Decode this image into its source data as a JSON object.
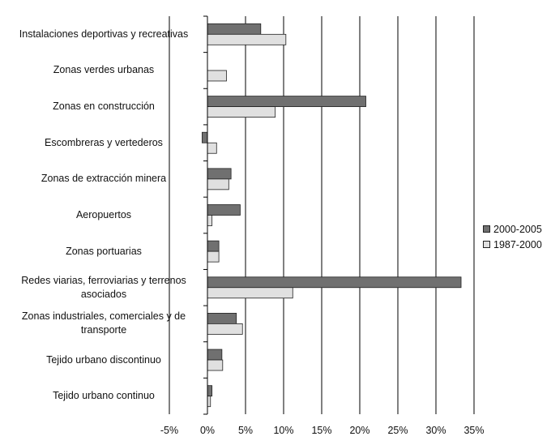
{
  "chart_data": {
    "type": "bar",
    "orientation": "horizontal",
    "categories": [
      "Instalaciones deportivas y recreativas",
      "Zonas verdes urbanas",
      "Zonas en construcción",
      "Escombreras y vertederos",
      "Zonas de extracción minera",
      "Aeropuertos",
      "Zonas portuarias",
      "Redes viarias, ferroviarias y terrenos asociados",
      "Zonas industriales, comerciales y de transporte",
      "Tejido urbano discontinuo",
      "Tejido urbano continuo"
    ],
    "series": [
      {
        "name": "2000-2005",
        "color": "#707070",
        "values": [
          7.0,
          0.0,
          20.8,
          -0.7,
          3.1,
          4.3,
          1.5,
          33.3,
          3.8,
          1.9,
          0.6
        ]
      },
      {
        "name": "1987-2000",
        "color": "#e0e0e0",
        "values": [
          10.3,
          2.5,
          8.9,
          1.2,
          2.8,
          0.6,
          1.5,
          11.2,
          4.6,
          2.0,
          0.4
        ]
      }
    ],
    "xlim": [
      -5,
      35
    ],
    "xticks": [
      "-5%",
      "0%",
      "5%",
      "10%",
      "15%",
      "20%",
      "25%",
      "30%",
      "35%"
    ],
    "xtick_values": [
      -5,
      0,
      5,
      10,
      15,
      20,
      25,
      30,
      35
    ],
    "grid": "vertical",
    "legend_position": "right"
  }
}
